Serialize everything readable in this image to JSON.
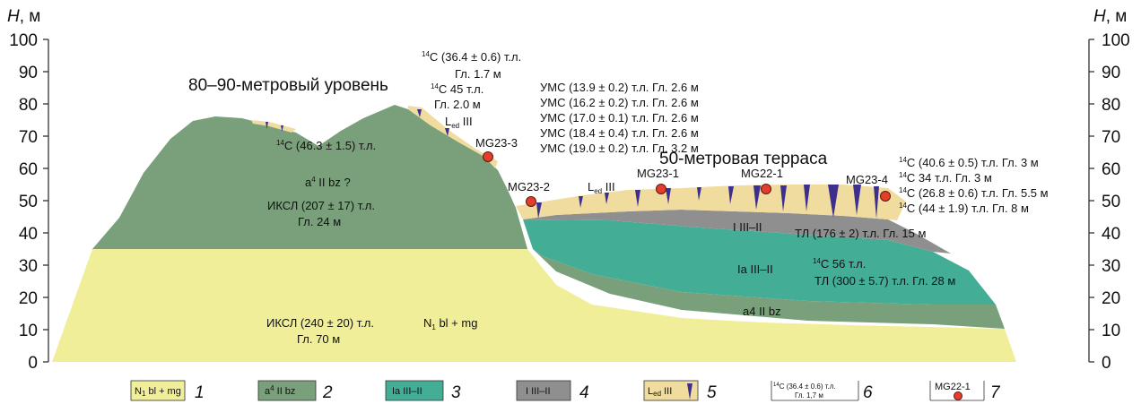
{
  "axes": {
    "left_label_italic": "H",
    "left_label_rest": ", м",
    "right_label_italic": "H",
    "right_label_rest": ", м",
    "ticks": [
      "100",
      "90",
      "80",
      "70",
      "60",
      "50",
      "40",
      "30",
      "20",
      "10",
      "0"
    ]
  },
  "titles": {
    "level_80_90": "80–90-метровый уровень",
    "terrace_50": "50-метровая терраса"
  },
  "samples": {
    "mg23_3": "MG23-3",
    "mg23_2": "MG23-2",
    "mg23_1": "MG23-1",
    "mg22_1": "MG22-1",
    "mg23_4": "MG23-4"
  },
  "units": {
    "n1_body": "N",
    "n1_sub": "1",
    "n1_rest": " bl + mg",
    "a4_pre": "a",
    "a4_sup": "4",
    "a4_rest": " II bz ?",
    "a4_lower": "a4 II bz",
    "ia": "Ia III–II",
    "iii": "I III–II",
    "led_upper_pre": "L",
    "led_upper_sub": "ed",
    "led_upper_rest": " III",
    "led_mid_pre": "L",
    "led_mid_sub": "ed",
    "led_mid_rest": " III"
  },
  "dates": {
    "c_top_pre": "14",
    "c_top_rest": "C (36.4 ± 0.6) т.л.",
    "c_top_depth": "Гл. 1.7 м",
    "c45_pre": "14",
    "c45_rest": "C 45 т.л.",
    "c45_depth": "Гл. 2.0 м",
    "c_hill_pre": "14",
    "c_hill_rest": "C (46.3 ± 1.5) т.л.",
    "iksl_207": "ИКСЛ (207 ± 17) т.л.",
    "iksl_207_depth": "Гл. 24 м",
    "iksl_240": "ИКСЛ (240 ± 20) т.л.",
    "iksl_240_depth": "Гл. 70 м",
    "ums": [
      "УМС (13.9 ± 0.2) т.л. Гл. 2.6 м",
      "УМС (16.2 ± 0.2) т.л. Гл. 2.6 м",
      "УМС (17.0 ± 0.1) т.л. Гл. 2.6 м",
      "УМС (18.4 ± 0.4) т.л. Гл. 2.6 м",
      "УМС (19.0 ± 0.2) т.л. Гл. 3.2 м"
    ],
    "right_c_pre": "14",
    "right_c": [
      "C (40.6 ± 0.5) т.л. Гл. 3 м",
      "C 34 т.л. Гл. 3 м",
      "C (26.8 ± 0.6) т.л. Гл. 5.5 м",
      "C (44 ± 1.9) т.л. Гл. 8 м"
    ],
    "tl_176": "ТЛ (176 ± 2) т.л. Гл. 15 м",
    "c56_pre": "14",
    "c56_rest": "C 56 т.л.",
    "tl_300": "ТЛ (300 ± 5.7) т.л. Гл. 28 м"
  },
  "legend": {
    "items": [
      {
        "num": "1",
        "text": "N1 bl + mg"
      },
      {
        "num": "2",
        "text": "a4 II bz"
      },
      {
        "num": "3",
        "text": "Ia III–II"
      },
      {
        "num": "4",
        "text": "I III–II"
      },
      {
        "num": "5",
        "text": "Led III"
      },
      {
        "num": "6",
        "text": "14C (36.4 ± 0.6) т.л. Гл. 1,7 м"
      },
      {
        "num": "7",
        "text": "MG22-1"
      }
    ],
    "n1_body": "N",
    "n1_sub": "1",
    "n1_rest": " bl + mg",
    "a4_pre": "a",
    "a4_sup": "4",
    "a4_rest": " II bz",
    "ia": "Ia III–II",
    "iii": "I III–II",
    "led_pre": "L",
    "led_sub": "ed",
    "led_rest": " III",
    "c_pre": "14",
    "c_line1": "C (36.4 ± 0.6) т.л.",
    "c_line2": "Гл. 1,7 м",
    "mg": "MG22-1"
  },
  "colors": {
    "n1_yellow": "#f1ee9a",
    "a4_green": "#79a07a",
    "ia_teal": "#43ad96",
    "iii_gray": "#8f8f8f",
    "loess_beige": "#efdc9e",
    "wedge_purple": "#3e2f8e",
    "sample_red": "#e33d2b"
  }
}
